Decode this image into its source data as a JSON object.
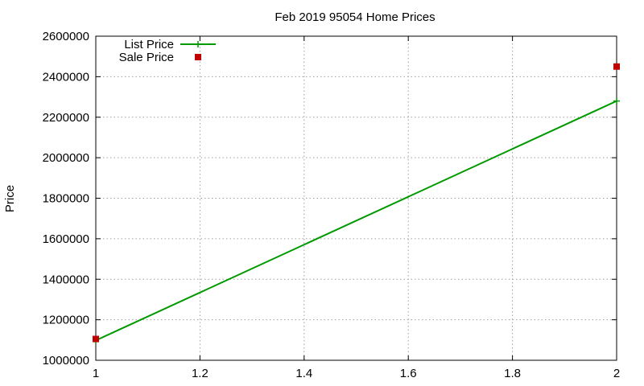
{
  "chart_data": {
    "type": "line",
    "title": "Feb 2019 95054 Home Prices",
    "xlabel": "",
    "ylabel": "Price",
    "xlim": [
      1,
      2
    ],
    "ylim": [
      1000000,
      2600000
    ],
    "x_ticks": [
      1,
      1.2,
      1.4,
      1.6,
      1.8,
      2
    ],
    "x_tick_labels": [
      "1",
      "1.2",
      "1.4",
      "1.6",
      "1.8",
      "2"
    ],
    "y_ticks": [
      1000000,
      1200000,
      1400000,
      1600000,
      1800000,
      2000000,
      2200000,
      2400000,
      2600000
    ],
    "y_tick_labels": [
      "1000000",
      "1200000",
      "1400000",
      "1600000",
      "1800000",
      "2000000",
      "2200000",
      "2400000",
      "2600000"
    ],
    "grid": true,
    "legend_position": "top-left",
    "series": [
      {
        "name": "List Price",
        "style": "line-points",
        "color": "#009900",
        "x": [
          1,
          2
        ],
        "y": [
          1098000,
          2280000
        ]
      },
      {
        "name": "Sale Price",
        "style": "points",
        "color": "#c00000",
        "x": [
          1,
          2
        ],
        "y": [
          1105000,
          2450000
        ]
      }
    ]
  }
}
